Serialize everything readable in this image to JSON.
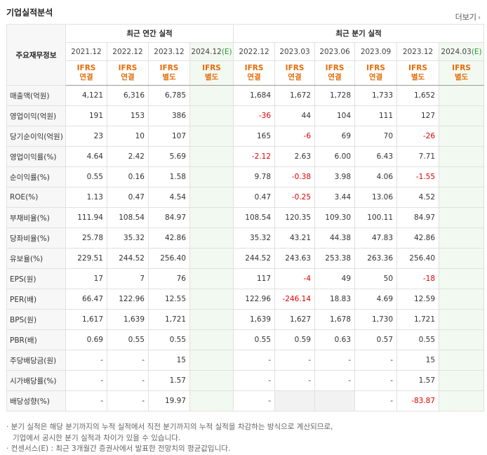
{
  "header": {
    "title": "기업실적분석",
    "more_label": "더보기",
    "more_icon": "chevron-right-icon"
  },
  "table": {
    "corner_label": "주요재무정보",
    "groups": {
      "annual": "최근 연간 실적",
      "quarterly": "최근 분기 실적"
    },
    "periods": [
      {
        "label": "2021.12",
        "est": ""
      },
      {
        "label": "2022.12",
        "est": ""
      },
      {
        "label": "2023.12",
        "est": ""
      },
      {
        "label": "2024.12",
        "est": "(E)"
      },
      {
        "label": "2022.12",
        "est": ""
      },
      {
        "label": "2023.03",
        "est": ""
      },
      {
        "label": "2023.06",
        "est": ""
      },
      {
        "label": "2023.09",
        "est": ""
      },
      {
        "label": "2023.12",
        "est": ""
      },
      {
        "label": "2024.03",
        "est": "(E)"
      }
    ],
    "ifrs": [
      {
        "l1": "IFRS",
        "l2": "연결"
      },
      {
        "l1": "IFRS",
        "l2": "연결"
      },
      {
        "l1": "IFRS",
        "l2": "별도"
      },
      {
        "l1": "IFRS",
        "l2": "별도"
      },
      {
        "l1": "IFRS",
        "l2": "연결"
      },
      {
        "l1": "IFRS",
        "l2": "연결"
      },
      {
        "l1": "IFRS",
        "l2": "연결"
      },
      {
        "l1": "IFRS",
        "l2": "연결"
      },
      {
        "l1": "IFRS",
        "l2": "별도"
      },
      {
        "l1": "IFRS",
        "l2": "별도"
      }
    ],
    "rows": [
      {
        "label": "매출액(억원)",
        "values": [
          "4,121",
          "6,316",
          "6,785",
          "",
          "1,684",
          "1,672",
          "1,728",
          "1,733",
          "1,652",
          ""
        ]
      },
      {
        "label": "영업이익(억원)",
        "values": [
          "191",
          "153",
          "386",
          "",
          "-36",
          "44",
          "104",
          "111",
          "127",
          ""
        ]
      },
      {
        "label": "당기순이익(억원)",
        "values": [
          "23",
          "10",
          "107",
          "",
          "165",
          "-6",
          "69",
          "70",
          "-26",
          ""
        ]
      },
      {
        "label": "영업이익률(%)",
        "values": [
          "4.64",
          "2.42",
          "5.69",
          "",
          "-2.12",
          "2.63",
          "6.00",
          "6.43",
          "7.71",
          ""
        ]
      },
      {
        "label": "순이익률(%)",
        "values": [
          "0.55",
          "0.16",
          "1.58",
          "",
          "9.78",
          "-0.38",
          "3.98",
          "4.06",
          "-1.55",
          ""
        ]
      },
      {
        "label": "ROE(%)",
        "values": [
          "1.13",
          "0.47",
          "4.54",
          "",
          "0.47",
          "-0.25",
          "3.44",
          "13.06",
          "4.52",
          ""
        ]
      },
      {
        "label": "부채비율(%)",
        "values": [
          "111.94",
          "108.54",
          "84.97",
          "",
          "108.54",
          "120.35",
          "109.30",
          "100.11",
          "84.97",
          ""
        ]
      },
      {
        "label": "당좌비율(%)",
        "values": [
          "25.78",
          "35.32",
          "42.86",
          "",
          "35.32",
          "43.21",
          "44.38",
          "47.83",
          "42.86",
          ""
        ]
      },
      {
        "label": "유보율(%)",
        "values": [
          "229.51",
          "244.52",
          "256.40",
          "",
          "244.52",
          "243.63",
          "253.38",
          "263.36",
          "256.40",
          ""
        ]
      },
      {
        "label": "EPS(원)",
        "values": [
          "17",
          "7",
          "76",
          "",
          "117",
          "-4",
          "49",
          "50",
          "-18",
          ""
        ]
      },
      {
        "label": "PER(배)",
        "values": [
          "66.47",
          "122.96",
          "12.55",
          "",
          "122.96",
          "-246.14",
          "18.83",
          "4.69",
          "12.59",
          ""
        ]
      },
      {
        "label": "BPS(원)",
        "values": [
          "1,617",
          "1,639",
          "1,721",
          "",
          "1,639",
          "1,627",
          "1,678",
          "1,730",
          "1,721",
          ""
        ]
      },
      {
        "label": "PBR(배)",
        "values": [
          "0.69",
          "0.55",
          "0.55",
          "",
          "0.55",
          "0.59",
          "0.63",
          "0.57",
          "0.55",
          ""
        ]
      },
      {
        "label": "주당배당금(원)",
        "values": [
          "-",
          "-",
          "15",
          "",
          "-",
          "-",
          "-",
          "-",
          "15",
          ""
        ]
      },
      {
        "label": "시가배당률(%)",
        "values": [
          "-",
          "-",
          "1.57",
          "",
          "-",
          "-",
          "-",
          "-",
          "1.57",
          ""
        ]
      },
      {
        "label": "배당성향(%)",
        "values": [
          "-",
          "-",
          "19.97",
          "",
          "-",
          "",
          "",
          "-",
          "-83.87",
          ""
        ]
      }
    ]
  },
  "notes": {
    "line1": "· 분기 실적은 해당 분기까지의 누적 실적에서 직전 분기까지의 누적 실적을 차감하는 방식으로 계산되므로,",
    "line2": "기업에서 공시한 분기 실적과 차이가 있을 수 있습니다.",
    "line3": "· 컨센서스(E) : 최근 3개월간 증권사에서 발표한 전망치의 평균값입니다."
  }
}
